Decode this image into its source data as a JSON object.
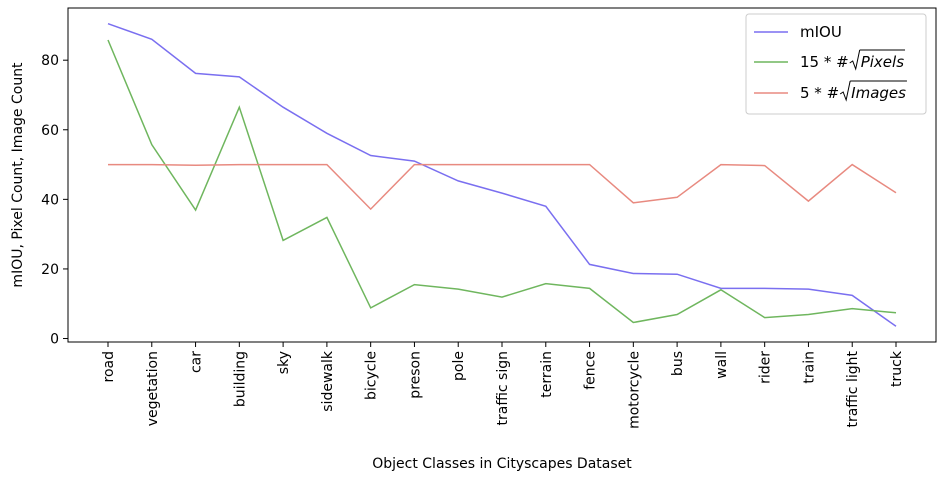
{
  "chart_data": {
    "type": "line",
    "title": "",
    "xlabel": "Object Classes in Cityscapes Dataset",
    "ylabel": "mIOU, Pixel Count, Image Count",
    "categories": [
      "road",
      "vegetation",
      "car",
      "building",
      "sky",
      "sidewalk",
      "bicycle",
      "preson",
      "pole",
      "traffic sign",
      "terrain",
      "fence",
      "motorcycle",
      "bus",
      "wall",
      "rider",
      "train",
      "traffic light",
      "truck"
    ],
    "ylim": [
      -1,
      95
    ],
    "yticks": [
      0,
      20,
      40,
      60,
      80
    ],
    "grid": false,
    "legend_position": "top-right",
    "series": [
      {
        "name": "mIOU",
        "color": "#7a6ff0",
        "values": [
          90.5,
          86,
          76.2,
          75.2,
          66.5,
          59,
          52.6,
          51,
          45.3,
          41.8,
          38,
          21.3,
          18.7,
          18.5,
          14.4,
          14.4,
          14.2,
          12.4,
          3.5
        ]
      },
      {
        "name": "15 * #√Pixels",
        "color": "#6fb65e",
        "values": [
          85.8,
          55.7,
          36.9,
          66.5,
          28.2,
          34.8,
          8.8,
          15.5,
          14.2,
          11.9,
          15.8,
          14.4,
          4.6,
          6.9,
          14,
          6,
          6.9,
          8.6,
          7.4
        ]
      },
      {
        "name": "5 * #√Images",
        "color": "#e88a80",
        "values": [
          50,
          50,
          49.8,
          50,
          50,
          50,
          37.2,
          50,
          50,
          50,
          50,
          50,
          39,
          40.6,
          50,
          49.7,
          39.5,
          50,
          41.9
        ]
      }
    ],
    "legend": {
      "entries": [
        {
          "prefix": "mIOU",
          "radicand": ""
        },
        {
          "prefix": "15 * #",
          "radicand": "Pixels"
        },
        {
          "prefix": "5 * #",
          "radicand": "Images"
        }
      ]
    }
  }
}
